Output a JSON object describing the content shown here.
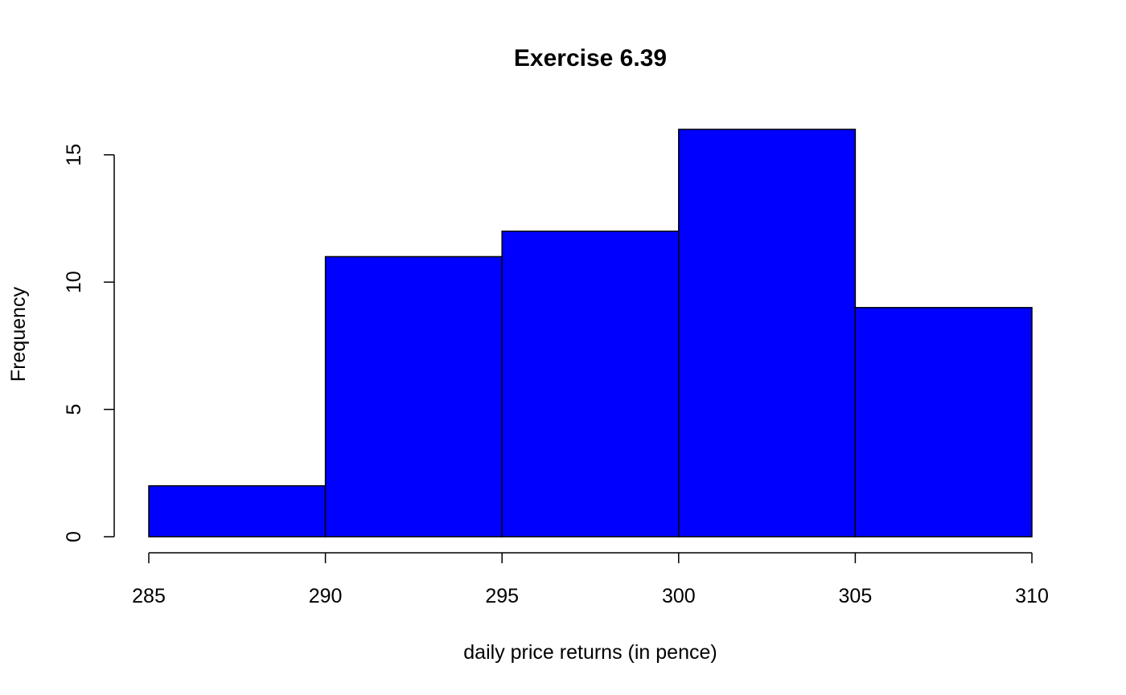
{
  "chart_data": {
    "type": "bar",
    "subtype": "histogram",
    "title": "Exercise 6.39",
    "xlabel": "daily price returns (in pence)",
    "ylabel": "Frequency",
    "bins": [
      {
        "start": 285,
        "end": 290,
        "count": 2
      },
      {
        "start": 290,
        "end": 295,
        "count": 11
      },
      {
        "start": 295,
        "end": 300,
        "count": 12
      },
      {
        "start": 300,
        "end": 305,
        "count": 16
      },
      {
        "start": 305,
        "end": 310,
        "count": 9
      }
    ],
    "xlim": [
      285,
      310
    ],
    "ylim": [
      0,
      16
    ],
    "x_ticks": [
      285,
      290,
      295,
      300,
      305,
      310
    ],
    "y_ticks": [
      0,
      5,
      10,
      15
    ],
    "grid": false,
    "legend": "none",
    "colors": {
      "bar_fill": "#0000ff",
      "bar_stroke": "#000000",
      "axis": "#000000"
    }
  }
}
